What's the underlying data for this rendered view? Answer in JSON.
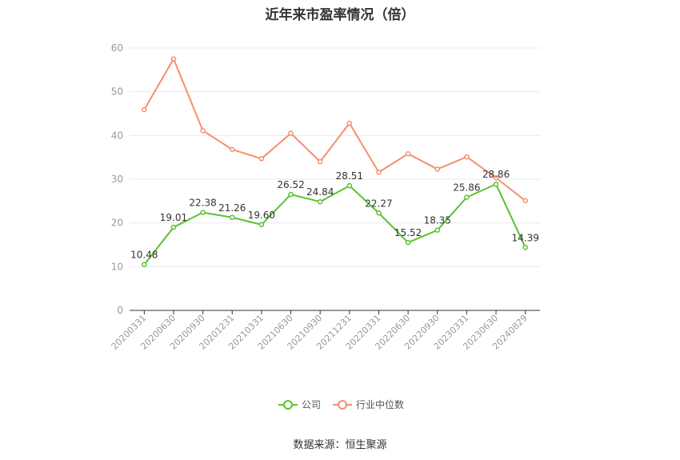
{
  "title": "近年来市盈率情况（倍）",
  "source": "数据来源：恒生聚源",
  "colors": {
    "company": "#5cc22f",
    "industry": "#f4906b",
    "grid": "#e6e9f0",
    "axis": "#333333"
  },
  "chart_data": {
    "type": "line",
    "categories": [
      "20200331",
      "20200630",
      "20200930",
      "20201231",
      "20210331",
      "20210630",
      "20210930",
      "20211231",
      "20220331",
      "20220630",
      "20220930",
      "20230331",
      "20230630",
      "20240829"
    ],
    "ylim": [
      0,
      60
    ],
    "yticks": [
      0,
      10,
      20,
      30,
      40,
      50,
      60
    ],
    "grid": true,
    "legend_position": "bottom",
    "series": [
      {
        "name": "公司",
        "color": "#5cc22f",
        "labels": true,
        "values": [
          10.48,
          19.01,
          22.38,
          21.26,
          19.6,
          26.52,
          24.84,
          28.51,
          22.27,
          15.52,
          18.35,
          25.86,
          28.86,
          14.39
        ],
        "value_labels": [
          "10.48",
          "19.01",
          "22.38",
          "21.26",
          "19.60",
          "26.52",
          "24.84",
          "28.51",
          "22.27",
          "15.52",
          "18.35",
          "25.86",
          "28.86",
          "14.39"
        ]
      },
      {
        "name": "行业中位数",
        "color": "#f4906b",
        "labels": false,
        "values": [
          45.9,
          57.5,
          41.1,
          36.8,
          34.7,
          40.5,
          34.0,
          42.8,
          31.6,
          35.8,
          32.3,
          35.1,
          30.3,
          25.1
        ]
      }
    ]
  }
}
